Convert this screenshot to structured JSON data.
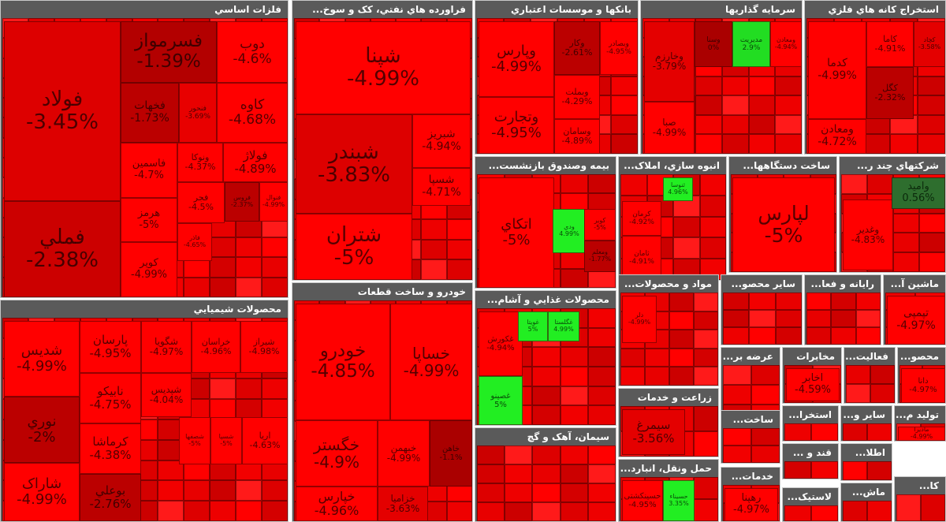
{
  "sectors": [
    {
      "title": "فلزات اساسي",
      "tiles": [
        {
          "name": "فولاد",
          "change": "-3.45%",
          "color": "#dd0000"
        },
        {
          "name": "فملي",
          "change": "-2.38%",
          "color": "#cc0000"
        },
        {
          "name": "فسرمواز",
          "change": "-1.39%",
          "color": "#b30000"
        },
        {
          "name": "دوب",
          "change": "-4.6%",
          "color": "#ff0000"
        },
        {
          "name": "فخهات",
          "change": "-1.73%",
          "color": "#bb0000"
        },
        {
          "name": "فنحور",
          "change": "-3.69%",
          "color": "#e80000"
        },
        {
          "name": "کاوه",
          "change": "-4.68%",
          "color": "#ff0000"
        },
        {
          "name": "فاسمين",
          "change": "-4.7%",
          "color": "#ff0000"
        },
        {
          "name": "ونوکا",
          "change": "-4.37%",
          "color": "#ff0000"
        },
        {
          "name": "فولاژ",
          "change": "-4.89%",
          "color": "#ff0000"
        },
        {
          "name": "هرمز",
          "change": "-5%",
          "color": "#ff0000"
        },
        {
          "name": "فجر",
          "change": "-4.5%",
          "color": "#ff0000"
        },
        {
          "name": "فروس",
          "change": "-2.37%",
          "color": "#bb0000"
        },
        {
          "name": "فنوال",
          "change": "-4.99%",
          "color": "#ff0000"
        },
        {
          "name": "کوير",
          "change": "-4.99%",
          "color": "#ff0000"
        },
        {
          "name": "فاذر",
          "change": "-4.65%",
          "color": "#ff0000"
        }
      ]
    },
    {
      "title": "فراورده هاي نفتي، کک و سوخ...",
      "tiles": [
        {
          "name": "شپنا",
          "change": "-4.99%",
          "color": "#ff0000"
        },
        {
          "name": "شبندر",
          "change": "-3.83%",
          "color": "#dd0000"
        },
        {
          "name": "شتران",
          "change": "-5%",
          "color": "#ff0000"
        },
        {
          "name": "شبريز",
          "change": "-4.94%",
          "color": "#ff0000"
        },
        {
          "name": "شسپا",
          "change": "-4.71%",
          "color": "#ff0000"
        }
      ]
    },
    {
      "title": "بانکها و موسسات اعتباري",
      "tiles": [
        {
          "name": "وپارس",
          "change": "-4.99%",
          "color": "#ff0000"
        },
        {
          "name": "وتجارت",
          "change": "-4.95%",
          "color": "#ff0000"
        },
        {
          "name": "وکار",
          "change": "-2.61%",
          "color": "#bb0000"
        },
        {
          "name": "وبصادر",
          "change": "-4.95%",
          "color": "#ff0000"
        },
        {
          "name": "وبملت",
          "change": "-4.29%",
          "color": "#ff0000"
        },
        {
          "name": "وسامان",
          "change": "-4.89%",
          "color": "#ff0000"
        }
      ]
    },
    {
      "title": "سرمايه گذاريها",
      "tiles": [
        {
          "name": "وخارزم",
          "change": "-3.79%",
          "color": "#e40000"
        },
        {
          "name": "وسنا",
          "change": "0%",
          "color": "#aa0000"
        },
        {
          "name": "مديريت",
          "change": "2.9%",
          "color": "#22dd22"
        },
        {
          "name": "ومعادن",
          "change": "-4.94%",
          "color": "#ff0000"
        },
        {
          "name": "صبا",
          "change": "-4.99%",
          "color": "#ff0000"
        }
      ]
    },
    {
      "title": "استخراج کانه هاي فلزي",
      "tiles": [
        {
          "name": "کدما",
          "change": "-4.99%",
          "color": "#ff0000"
        },
        {
          "name": "کاما",
          "change": "-4.91%",
          "color": "#ff0000"
        },
        {
          "name": "کچاد",
          "change": "-3.58%",
          "color": "#e40000"
        },
        {
          "name": "کگل",
          "change": "-2.32%",
          "color": "#bb0000"
        },
        {
          "name": "ومعادن",
          "change": "-4.72%",
          "color": "#ff0000"
        }
      ]
    },
    {
      "title": "بيمه وصندوق بازنشست...",
      "tiles": [
        {
          "name": "اتکاي",
          "change": "-5%",
          "color": "#ff0000"
        },
        {
          "name": "ودي",
          "change": "4.99%",
          "color": "#22ee22"
        },
        {
          "name": "کوير",
          "change": "-5%",
          "color": "#ff0000"
        },
        {
          "name": "ومعلم",
          "change": "-1.77%",
          "color": "#bb0000"
        }
      ]
    },
    {
      "title": "انبوه سازي، املاک...",
      "tiles": [
        {
          "name": "ثنوسا",
          "change": "4.96%",
          "color": "#22ee22"
        },
        {
          "name": "کرمان",
          "change": "-4.92%",
          "color": "#ff0000"
        },
        {
          "name": "ثامان",
          "change": "-4.91%",
          "color": "#ff0000"
        }
      ]
    },
    {
      "title": "ساخت دستگاهها...",
      "tiles": [
        {
          "name": "لپارس",
          "change": "-5%",
          "color": "#ff0000"
        }
      ]
    },
    {
      "title": "شرکتهاي چند ر...",
      "tiles": [
        {
          "name": "وغدير",
          "change": "-4.83%",
          "color": "#ff0000"
        },
        {
          "name": "وامید",
          "change": "0.56%",
          "color": "#2e6e2e"
        }
      ]
    },
    {
      "title": "محصولات شيميايي",
      "tiles": [
        {
          "name": "شديس",
          "change": "-4.99%",
          "color": "#ff0000"
        },
        {
          "name": "پارسان",
          "change": "-4.95%",
          "color": "#ff0000"
        },
        {
          "name": "شگويا",
          "change": "-4.97%",
          "color": "#ff0000"
        },
        {
          "name": "خراسان",
          "change": "-4.96%",
          "color": "#ff0000"
        },
        {
          "name": "شيراز",
          "change": "-4.98%",
          "color": "#ff0000"
        },
        {
          "name": "نوري",
          "change": "-2%",
          "color": "#bb0000"
        },
        {
          "name": "نابيکو",
          "change": "-4.75%",
          "color": "#ff0000"
        },
        {
          "name": "کرماشا",
          "change": "-4.38%",
          "color": "#ff0000"
        },
        {
          "name": "شاراک",
          "change": "-4.99%",
          "color": "#ff0000"
        },
        {
          "name": "بوعلي",
          "change": "-2.76%",
          "color": "#bb0000"
        },
        {
          "name": "شپديس",
          "change": "-4.04%",
          "color": "#ff0000"
        },
        {
          "name": "شصفها",
          "change": "-5%",
          "color": "#ff0000"
        },
        {
          "name": "شسپا",
          "change": "-5%",
          "color": "#ff0000"
        },
        {
          "name": "اريا",
          "change": "-4.63%",
          "color": "#ff0000"
        }
      ]
    },
    {
      "title": "خودرو و ساخت قطعات",
      "tiles": [
        {
          "name": "خودرو",
          "change": "-4.85%",
          "color": "#ff0000"
        },
        {
          "name": "خساپا",
          "change": "-4.99%",
          "color": "#ff0000"
        },
        {
          "name": "خگستر",
          "change": "-4.9%",
          "color": "#ff0000"
        },
        {
          "name": "خبهمن",
          "change": "-4.99%",
          "color": "#ff0000"
        },
        {
          "name": "خاهن",
          "change": "-1.1%",
          "color": "#aa0000"
        },
        {
          "name": "خپارس",
          "change": "-4.96%",
          "color": "#ff0000"
        },
        {
          "name": "خزامیا",
          "change": "-3.63%",
          "color": "#e40000"
        }
      ]
    },
    {
      "title": "مواد و محصولات...",
      "tiles": [
        {
          "name": "دلر",
          "change": "-4.99%",
          "color": "#ff0000"
        }
      ]
    },
    {
      "title": "ساير محصو...",
      "tiles": []
    },
    {
      "title": "رايانه و فعا...",
      "tiles": []
    },
    {
      "title": "ماشين آ...",
      "tiles": [
        {
          "name": "تپمپی",
          "change": "-4.97%",
          "color": "#ff0000"
        }
      ]
    },
    {
      "title": "محصولات غذايي و آشام...",
      "tiles": [
        {
          "name": "غکورش",
          "change": "-4.94%",
          "color": "#ff0000"
        },
        {
          "name": "غويتا",
          "change": "5%",
          "color": "#22ee22"
        },
        {
          "name": "غگلستا",
          "change": "4.99%",
          "color": "#22ee22"
        },
        {
          "name": "غصينو",
          "change": "5%",
          "color": "#22ee22"
        }
      ]
    },
    {
      "title": "عرضه بر...",
      "tiles": []
    },
    {
      "title": "مخابرات",
      "tiles": [
        {
          "name": "اخابر",
          "change": "-4.59%",
          "color": "#ff0000"
        }
      ]
    },
    {
      "title": "فعاليت...",
      "tiles": []
    },
    {
      "title": "محصو...",
      "tiles": [
        {
          "name": "دانا",
          "change": "-4.97%",
          "color": "#ff0000"
        }
      ]
    },
    {
      "title": "زراعت و خدمات",
      "tiles": [
        {
          "name": "سيمرغ",
          "change": "-3.56%",
          "color": "#e40000"
        }
      ]
    },
    {
      "title": "ساخت...",
      "tiles": []
    },
    {
      "title": "استخرا...",
      "tiles": []
    },
    {
      "title": "ساير و...",
      "tiles": []
    },
    {
      "title": "توليد م...",
      "tiles": [
        {
          "name": "مادیرا",
          "change": "-4.99%",
          "color": "#ff0000"
        }
      ]
    },
    {
      "title": "سيمان، آهک و گچ",
      "tiles": []
    },
    {
      "title": "حمل ونقل، انبارد...",
      "tiles": [
        {
          "name": "حسينکشتی",
          "change": "-4.95%",
          "color": "#ff0000"
        },
        {
          "name": "حسيناء",
          "change": "3.35%",
          "color": "#22ee22"
        }
      ]
    },
    {
      "title": "خدمات...",
      "tiles": [
        {
          "name": "رهپنا",
          "change": "-4.97%",
          "color": "#ff0000"
        }
      ]
    },
    {
      "title": "قند و ...",
      "tiles": []
    },
    {
      "title": "اطلا...",
      "tiles": []
    },
    {
      "title": "لاستيک...",
      "tiles": []
    },
    {
      "title": "ماش...",
      "tiles": []
    },
    {
      "title": "کا...",
      "tiles": []
    }
  ]
}
